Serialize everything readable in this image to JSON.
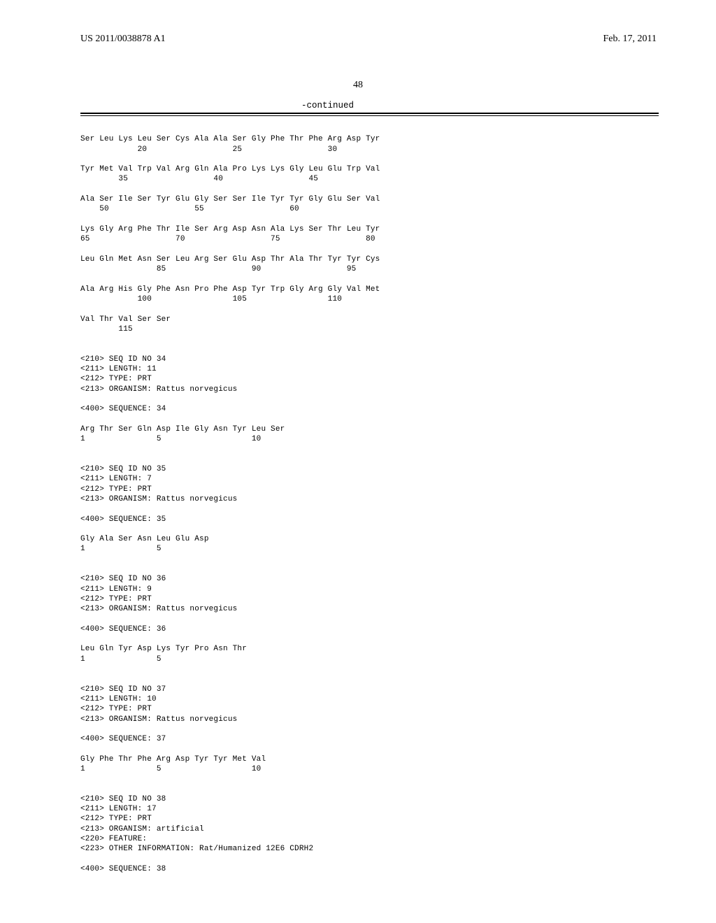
{
  "header": {
    "pub_number": "US 2011/0038878 A1",
    "pub_date": "Feb. 17, 2011"
  },
  "page_number": "48",
  "continued_label": "-continued",
  "seq": {
    "block1": {
      "r1": "Ser Leu Lys Leu Ser Cys Ala Ala Ser Gly Phe Thr Phe Arg Asp Tyr",
      "n1": "            20                  25                  30",
      "r2": "Tyr Met Val Trp Val Arg Gln Ala Pro Lys Lys Gly Leu Glu Trp Val",
      "n2": "        35                  40                  45",
      "r3": "Ala Ser Ile Ser Tyr Glu Gly Ser Ser Ile Tyr Tyr Gly Glu Ser Val",
      "n3": "    50                  55                  60",
      "r4": "Lys Gly Arg Phe Thr Ile Ser Arg Asp Asn Ala Lys Ser Thr Leu Tyr",
      "n4": "65                  70                  75                  80",
      "r5": "Leu Gln Met Asn Ser Leu Arg Ser Glu Asp Thr Ala Thr Tyr Tyr Cys",
      "n5": "                85                  90                  95",
      "r6": "Ala Arg His Gly Phe Asn Pro Phe Asp Tyr Trp Gly Arg Gly Val Met",
      "n6": "            100                 105                 110",
      "r7": "Val Thr Val Ser Ser",
      "n7": "        115"
    },
    "s34": {
      "h1": "<210> SEQ ID NO 34",
      "h2": "<211> LENGTH: 11",
      "h3": "<212> TYPE: PRT",
      "h4": "<213> ORGANISM: Rattus norvegicus",
      "h5": "<400> SEQUENCE: 34",
      "r": "Arg Thr Ser Gln Asp Ile Gly Asn Tyr Leu Ser",
      "n": "1               5                   10"
    },
    "s35": {
      "h1": "<210> SEQ ID NO 35",
      "h2": "<211> LENGTH: 7",
      "h3": "<212> TYPE: PRT",
      "h4": "<213> ORGANISM: Rattus norvegicus",
      "h5": "<400> SEQUENCE: 35",
      "r": "Gly Ala Ser Asn Leu Glu Asp",
      "n": "1               5"
    },
    "s36": {
      "h1": "<210> SEQ ID NO 36",
      "h2": "<211> LENGTH: 9",
      "h3": "<212> TYPE: PRT",
      "h4": "<213> ORGANISM: Rattus norvegicus",
      "h5": "<400> SEQUENCE: 36",
      "r": "Leu Gln Tyr Asp Lys Tyr Pro Asn Thr",
      "n": "1               5"
    },
    "s37": {
      "h1": "<210> SEQ ID NO 37",
      "h2": "<211> LENGTH: 10",
      "h3": "<212> TYPE: PRT",
      "h4": "<213> ORGANISM: Rattus norvegicus",
      "h5": "<400> SEQUENCE: 37",
      "r": "Gly Phe Thr Phe Arg Asp Tyr Tyr Met Val",
      "n": "1               5                   10"
    },
    "s38": {
      "h1": "<210> SEQ ID NO 38",
      "h2": "<211> LENGTH: 17",
      "h3": "<212> TYPE: PRT",
      "h4": "<213> ORGANISM: artificial",
      "h5": "<220> FEATURE:",
      "h6": "<223> OTHER INFORMATION: Rat/Humanized 12E6 CDRH2",
      "h7": "<400> SEQUENCE: 38"
    }
  }
}
